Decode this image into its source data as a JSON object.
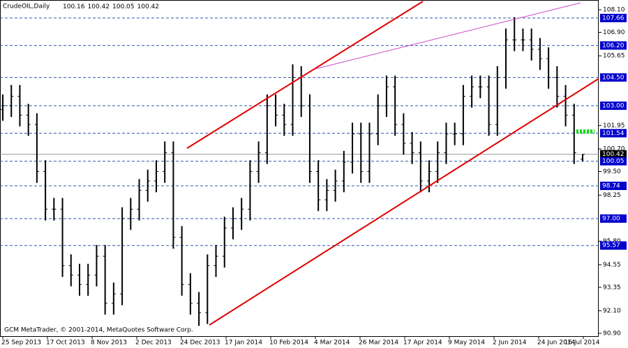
{
  "chart_data": {
    "type": "ohlc",
    "title": "CrudeOIL,Daily",
    "footer": "GCM MetaTrader, © 2001-2014, MetaQuotes Software Corp.",
    "categories": [
      "25 Sep 2013",
      "17 Oct 2013",
      "8 Nov 2013",
      "2 Dec 2013",
      "24 Dec 2013",
      "17 Jan 2014",
      "10 Feb 2014",
      "4 Mar 2014",
      "26 Mar 2014",
      "17 Apr 2014",
      "9 May 2014",
      "2 Jun 2014",
      "24 Jun 2014",
      "16 Jul 2014"
    ],
    "color": "#000000",
    "open": [
      102.8,
      103.0,
      103.5,
      102.5,
      102.0,
      99.5,
      97.5,
      97.5,
      94.5,
      94.0,
      93.5,
      94.0,
      95.0,
      92.5,
      93.0,
      97.0,
      97.5,
      98.5,
      99.0,
      99.5,
      100.5,
      96.0,
      93.5,
      92.5,
      92.0,
      94.5,
      95.0,
      96.5,
      97.0,
      97.5,
      99.5,
      100.5,
      103.0,
      102.5,
      102.0,
      104.5,
      103.0,
      99.5,
      98.0,
      98.5,
      99.0,
      100.0,
      101.5,
      99.5,
      101.5,
      103.0,
      104.0,
      102.0,
      101.0,
      100.5,
      99.0,
      99.5,
      100.5,
      101.5,
      101.5,
      103.5,
      104.0,
      104.0,
      102.0,
      104.5,
      106.5,
      106.5,
      106.5,
      106.0,
      105.5,
      104.5,
      103.5,
      102.5,
      100.16
    ],
    "high": [
      103.6,
      104.1,
      104.1,
      103.1,
      102.6,
      100.1,
      98.1,
      98.1,
      95.1,
      94.6,
      94.6,
      95.6,
      95.6,
      93.6,
      97.6,
      98.1,
      99.1,
      99.6,
      100.1,
      101.1,
      101.1,
      96.6,
      94.1,
      93.1,
      95.1,
      95.6,
      97.1,
      97.6,
      98.1,
      100.1,
      101.1,
      103.6,
      103.6,
      103.1,
      105.2,
      105.1,
      103.6,
      100.1,
      99.1,
      99.6,
      100.6,
      102.1,
      102.1,
      102.1,
      103.6,
      104.6,
      104.6,
      102.6,
      101.6,
      101.1,
      100.1,
      101.1,
      102.1,
      102.1,
      104.1,
      104.6,
      104.6,
      104.6,
      105.1,
      107.1,
      107.7,
      107.1,
      107.1,
      106.6,
      106.1,
      105.1,
      104.1,
      103.1,
      100.42
    ],
    "low": [
      102.2,
      102.4,
      101.9,
      101.4,
      98.9,
      96.9,
      96.9,
      93.9,
      93.4,
      92.9,
      92.9,
      93.4,
      91.9,
      91.9,
      92.4,
      96.4,
      96.9,
      97.9,
      98.4,
      98.9,
      95.4,
      92.9,
      91.9,
      91.3,
      91.4,
      93.9,
      94.4,
      95.9,
      96.4,
      96.9,
      98.9,
      99.9,
      101.9,
      101.4,
      101.4,
      102.4,
      98.9,
      97.4,
      97.4,
      97.9,
      98.4,
      99.4,
      98.9,
      98.9,
      100.9,
      102.4,
      101.4,
      100.4,
      99.9,
      98.4,
      98.4,
      98.9,
      99.9,
      100.9,
      100.9,
      102.9,
      103.4,
      101.4,
      101.4,
      103.9,
      105.9,
      105.9,
      105.4,
      104.9,
      103.9,
      102.9,
      101.9,
      99.9,
      100.05
    ],
    "close": [
      103.0,
      103.5,
      102.5,
      102.0,
      99.5,
      97.5,
      97.5,
      94.5,
      94.0,
      93.5,
      94.0,
      95.0,
      92.5,
      93.0,
      97.0,
      97.5,
      98.5,
      99.0,
      99.5,
      100.5,
      96.0,
      93.5,
      92.5,
      92.0,
      94.5,
      95.0,
      96.5,
      97.0,
      97.5,
      99.5,
      100.5,
      103.0,
      102.5,
      102.0,
      104.5,
      103.0,
      99.5,
      98.0,
      98.5,
      99.0,
      100.0,
      101.5,
      99.5,
      101.5,
      103.0,
      104.0,
      102.0,
      101.0,
      100.5,
      99.0,
      99.5,
      100.5,
      101.5,
      101.5,
      103.5,
      104.0,
      104.0,
      102.0,
      104.5,
      106.5,
      106.5,
      106.5,
      106.0,
      105.5,
      104.5,
      103.5,
      102.5,
      100.5,
      100.42
    ],
    "ylim": [
      90.9,
      108.1
    ],
    "yticks": [
      {
        "value": 108.1,
        "label": "108.10"
      },
      {
        "value": 106.9,
        "label": "106.90"
      },
      105.65,
      101.95,
      {
        "value": 100.7,
        "label": "100.70"
      },
      {
        "value": 99.5,
        "label": "99.50"
      },
      98.25,
      {
        "value": 95.8,
        "label": "95.80"
      },
      94.55,
      93.35,
      {
        "value": 92.1,
        "label": "92.10"
      },
      {
        "value": 90.9,
        "label": "90.90"
      }
    ],
    "levels": [
      {
        "value": 107.66,
        "label": "107.66",
        "color": "#0000cc"
      },
      {
        "value": 106.2,
        "label": "106.20",
        "color": "#0000cc"
      },
      {
        "value": 104.5,
        "label": "104.50",
        "color": "#0000cc"
      },
      {
        "value": 103,
        "label": "103.00",
        "color": "#0000cc"
      },
      {
        "value": 101.54,
        "label": "101.54",
        "color": "#0000cc"
      },
      {
        "value": 100.42,
        "label": "100.42",
        "color": "#000000"
      },
      {
        "value": 100.05,
        "label": "100.05",
        "color": "#0000cc"
      },
      {
        "value": 98.74,
        "label": "98.74",
        "color": "#0000cc"
      },
      {
        "value": 97,
        "label": "97.00",
        "color": "#0000cc"
      },
      {
        "value": 95.57,
        "label": "95.57",
        "color": "#0000cc"
      }
    ]
  }
}
